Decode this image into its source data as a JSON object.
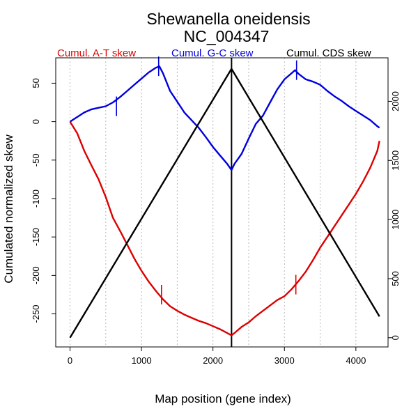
{
  "chart_data": {
    "type": "line",
    "title": "Shewanella oneidensis",
    "subtitle": "NC_004347",
    "xlabel": "Map position (gene index)",
    "ylabel": "Cumulated normalized skew",
    "xlim": [
      -200,
      4450
    ],
    "ylim": [
      -293,
      83
    ],
    "y2lim": [
      -78,
      2368
    ],
    "x_ticks": [
      0,
      1000,
      2000,
      3000,
      4000
    ],
    "y_ticks": [
      50,
      0,
      -50,
      -100,
      -150,
      -200,
      -250
    ],
    "y2_ticks": [
      0,
      500,
      1000,
      1500,
      2000
    ],
    "grid": "vertical dotted every 500",
    "legend": "top, horizontal",
    "colors": {
      "at": "#dd0000",
      "gc": "#0000dd",
      "cds": "#000000"
    },
    "series": [
      {
        "name": "Cumul. A-T skew",
        "color": "#dd0000",
        "axis": "left",
        "x": [
          0,
          100,
          200,
          300,
          400,
          500,
          600,
          700,
          800,
          900,
          1000,
          1100,
          1200,
          1300,
          1400,
          1500,
          1600,
          1700,
          1800,
          1900,
          2000,
          2100,
          2200,
          2260,
          2300,
          2400,
          2500,
          2600,
          2700,
          2800,
          2900,
          3000,
          3100,
          3200,
          3300,
          3400,
          3500,
          3600,
          3700,
          3800,
          3900,
          4000,
          4100,
          4200,
          4300,
          4330
        ],
        "y": [
          0,
          -15,
          -38,
          -57,
          -75,
          -98,
          -125,
          -142,
          -160,
          -178,
          -194,
          -208,
          -220,
          -231,
          -240,
          -246,
          -251,
          -255,
          -259,
          -262,
          -266,
          -270,
          -275,
          -278,
          -275,
          -267,
          -261,
          -253,
          -246,
          -239,
          -232,
          -227,
          -218,
          -207,
          -195,
          -180,
          -164,
          -150,
          -136,
          -122,
          -108,
          -94,
          -78,
          -60,
          -38,
          -25
        ]
      },
      {
        "name": "Cumul. G-C skew",
        "color": "#0000dd",
        "axis": "left",
        "x": [
          0,
          100,
          200,
          300,
          400,
          500,
          600,
          700,
          800,
          900,
          1000,
          1100,
          1200,
          1250,
          1300,
          1400,
          1500,
          1600,
          1700,
          1800,
          1900,
          2000,
          2100,
          2200,
          2260,
          2300,
          2400,
          2500,
          2600,
          2700,
          2800,
          2900,
          3000,
          3100,
          3150,
          3200,
          3300,
          3400,
          3500,
          3600,
          3700,
          3800,
          3900,
          4000,
          4100,
          4200,
          4300,
          4330
        ],
        "y": [
          0,
          6,
          12,
          16,
          18,
          20,
          25,
          32,
          40,
          48,
          56,
          64,
          70,
          72,
          63,
          40,
          26,
          12,
          2,
          -8,
          -20,
          -33,
          -44,
          -55,
          -63,
          -55,
          -42,
          -22,
          -3,
          8,
          25,
          42,
          55,
          63,
          67,
          62,
          55,
          52,
          48,
          40,
          33,
          27,
          20,
          14,
          8,
          2,
          -6,
          -8
        ]
      },
      {
        "name": "Cumul. CDS skew",
        "color": "#000000",
        "axis": "right",
        "x": [
          0,
          2260,
          4330
        ],
        "y": [
          0,
          2275,
          180
        ]
      }
    ],
    "markers": [
      {
        "series": "Cumul. A-T skew",
        "x": 1280,
        "y": -225
      },
      {
        "series": "Cumul. A-T skew",
        "x": 3160,
        "y": -212
      },
      {
        "series": "Cumul. G-C skew",
        "x": 650,
        "y": 20
      },
      {
        "series": "Cumul. G-C skew",
        "x": 1240,
        "y": 72
      },
      {
        "series": "Cumul. G-C skew",
        "x": 3170,
        "y": 67
      }
    ],
    "vertical_line": {
      "x": 2260,
      "color": "#000000"
    }
  }
}
